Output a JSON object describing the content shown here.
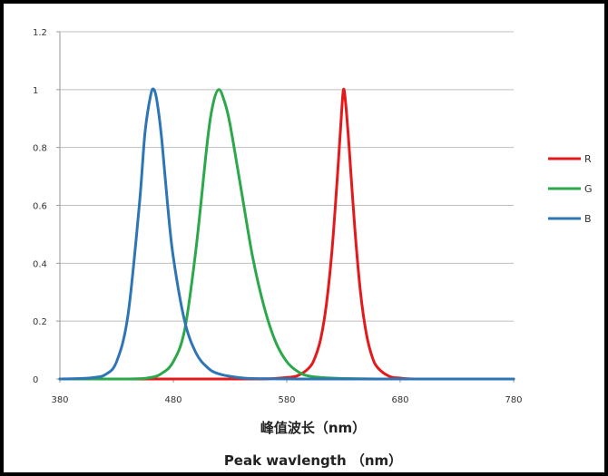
{
  "chart_data": {
    "type": "line",
    "xlabel_lines": [
      "峰值波长（nm）",
      "Peak wavlength （nm）"
    ],
    "ylabel": "",
    "xlim": [
      380,
      780
    ],
    "ylim": [
      0,
      1.2
    ],
    "x_ticks": [
      "380",
      "480",
      "580",
      "680",
      "780"
    ],
    "y_ticks": [
      "0",
      "0.2",
      "0.4",
      "0.6",
      "0.8",
      "1",
      "1.2"
    ],
    "x_tick_values": [
      380,
      480,
      580,
      680,
      780
    ],
    "y_tick_values": [
      0,
      0.2,
      0.4,
      0.6,
      0.8,
      1,
      1.2
    ],
    "grid": true,
    "legend_position": "right",
    "series": [
      {
        "name": "R",
        "color": "#e31a1c",
        "x": [
          380,
          540,
          560,
          580,
          590,
          600,
          605,
          610,
          615,
          620,
          625,
          628,
          630,
          632,
          635,
          640,
          645,
          650,
          655,
          660,
          670,
          680,
          700,
          780
        ],
        "y": [
          0,
          0,
          0,
          0.005,
          0.012,
          0.04,
          0.075,
          0.14,
          0.26,
          0.45,
          0.72,
          0.9,
          1.0,
          0.95,
          0.8,
          0.52,
          0.3,
          0.16,
          0.08,
          0.04,
          0.01,
          0.003,
          0,
          0
        ]
      },
      {
        "name": "G",
        "color": "#2aa84a",
        "x": [
          380,
          440,
          460,
          470,
          480,
          490,
          500,
          510,
          515,
          520,
          525,
          530,
          540,
          550,
          560,
          570,
          580,
          590,
          600,
          620,
          660,
          780
        ],
        "y": [
          0,
          0,
          0.005,
          0.02,
          0.06,
          0.17,
          0.45,
          0.82,
          0.95,
          1.0,
          0.96,
          0.88,
          0.65,
          0.42,
          0.25,
          0.13,
          0.06,
          0.025,
          0.01,
          0.003,
          0,
          0
        ]
      },
      {
        "name": "B",
        "color": "#2e75b6",
        "x": [
          380,
          400,
          410,
          420,
          430,
          440,
          450,
          455,
          460,
          463,
          466,
          470,
          475,
          480,
          490,
          500,
          510,
          520,
          540,
          560,
          600,
          780
        ],
        "y": [
          0,
          0.002,
          0.005,
          0.015,
          0.06,
          0.22,
          0.6,
          0.85,
          0.98,
          1.0,
          0.95,
          0.82,
          0.6,
          0.42,
          0.2,
          0.09,
          0.04,
          0.018,
          0.004,
          0.001,
          0,
          0
        ]
      }
    ]
  }
}
